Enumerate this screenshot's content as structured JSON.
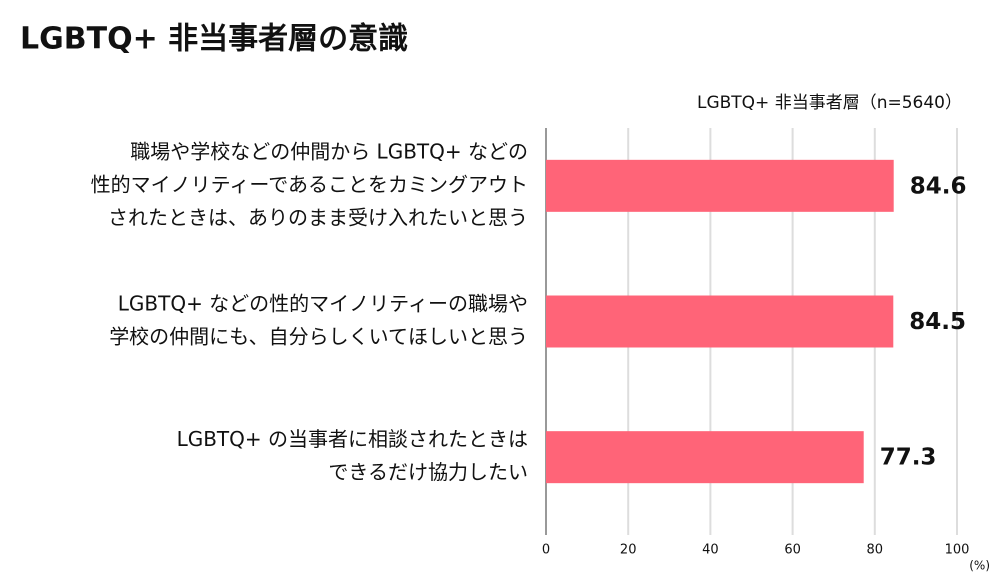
{
  "chart_data": {
    "type": "barh",
    "title": "LGBTQ+ 非当事者層の意識",
    "categories": [
      [
        "職場や学校などの仲間から LGBTQ+ などの",
        "性的マイノリティーであることをカミングアウト",
        "されたときは、ありのまま受け入れたいと思う"
      ],
      [
        "LGBTQ+ などの性的マイノリティーの職場や",
        "学校の仲間にも、自分らしくいてほしいと思う"
      ],
      [
        "LGBTQ+ の当事者に相談されたときは",
        "できるだけ協力したい"
      ]
    ],
    "series": [
      {
        "name": "LGBTQ+ 非当事者層（n=5640）",
        "color": "#ff6478",
        "values": [
          84.6,
          84.5,
          77.3
        ]
      }
    ],
    "xlim": [
      0,
      100
    ],
    "xticks": [
      0,
      20,
      40,
      60,
      80,
      100
    ],
    "unit": "(%)",
    "grid": true
  }
}
